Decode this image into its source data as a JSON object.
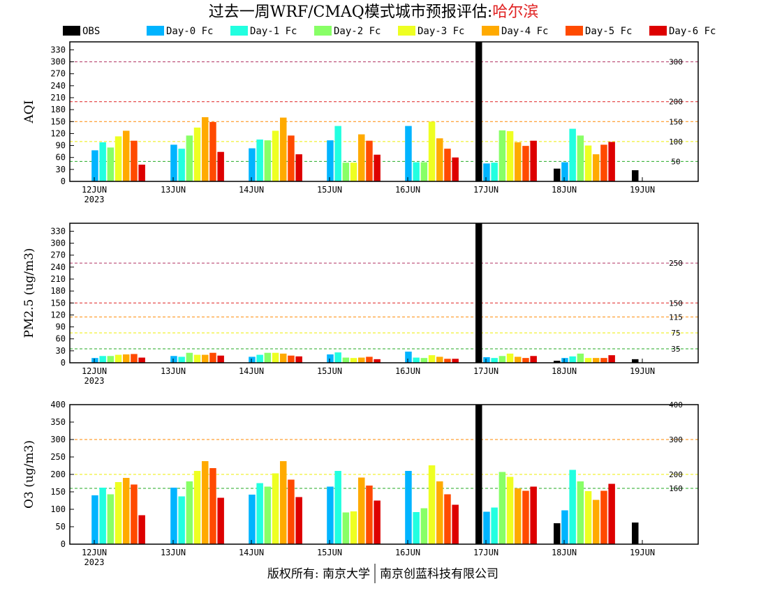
{
  "title": {
    "main": "过去一周WRF/CMAQ模式城市预报评估:",
    "city": "哈尔滨"
  },
  "legend": [
    {
      "name": "OBS",
      "color": "#000000"
    },
    {
      "name": "Day-0 Fc",
      "color": "#00b4ff"
    },
    {
      "name": "Day-1 Fc",
      "color": "#22ffe0"
    },
    {
      "name": "Day-2 Fc",
      "color": "#88ff66"
    },
    {
      "name": "Day-3 Fc",
      "color": "#eeff22"
    },
    {
      "name": "Day-4 Fc",
      "color": "#ffaa00"
    },
    {
      "name": "Day-5 Fc",
      "color": "#ff4a00"
    },
    {
      "name": "Day-6 Fc",
      "color": "#dd0000"
    }
  ],
  "footer": {
    "left": "版权所有: 南京大学",
    "right": "南京创蓝科技有限公司"
  },
  "chart_data": [
    {
      "type": "bar",
      "ylabel": "AQI",
      "ylim": [
        0,
        350
      ],
      "yticks": [
        0,
        30,
        60,
        90,
        120,
        150,
        180,
        210,
        240,
        270,
        300,
        330
      ],
      "categories": [
        "12JUN",
        "13JUN",
        "14JUN",
        "15JUN",
        "16JUN",
        "17JUN",
        "18JUN",
        "19JUN"
      ],
      "year_label": "2023",
      "thresholds": [
        {
          "value": 300,
          "label": "300",
          "color": "#b03060"
        },
        {
          "value": 200,
          "label": "200",
          "color": "#e02020"
        },
        {
          "value": 150,
          "label": "150",
          "color": "#ff8800"
        },
        {
          "value": 100,
          "label": "100",
          "color": "#eeee00"
        },
        {
          "value": 50,
          "label": "50",
          "color": "#22aa22"
        }
      ],
      "series": [
        {
          "name": "OBS",
          "values": [
            null,
            null,
            null,
            null,
            null,
            350,
            32,
            28
          ]
        },
        {
          "name": "Day-0 Fc",
          "values": [
            78,
            92,
            83,
            103,
            139,
            45,
            48,
            null
          ]
        },
        {
          "name": "Day-1 Fc",
          "values": [
            98,
            82,
            105,
            139,
            48,
            47,
            132,
            null
          ]
        },
        {
          "name": "Day-2 Fc",
          "values": [
            85,
            115,
            103,
            47,
            48,
            128,
            115,
            null
          ]
        },
        {
          "name": "Day-3 Fc",
          "values": [
            113,
            135,
            127,
            47,
            150,
            126,
            90,
            null
          ]
        },
        {
          "name": "Day-4 Fc",
          "values": [
            127,
            161,
            160,
            118,
            108,
            98,
            68,
            null
          ]
        },
        {
          "name": "Day-5 Fc",
          "values": [
            102,
            149,
            115,
            102,
            82,
            89,
            92,
            null
          ]
        },
        {
          "name": "Day-6 Fc",
          "values": [
            42,
            74,
            68,
            67,
            60,
            102,
            99,
            null
          ]
        }
      ]
    },
    {
      "type": "bar",
      "ylabel": "PM2.5 (ug/m3)",
      "ylim": [
        0,
        350
      ],
      "yticks": [
        0,
        30,
        60,
        90,
        120,
        150,
        180,
        210,
        240,
        270,
        300,
        330
      ],
      "categories": [
        "12JUN",
        "13JUN",
        "14JUN",
        "15JUN",
        "16JUN",
        "17JUN",
        "18JUN",
        "19JUN"
      ],
      "year_label": "2023",
      "thresholds": [
        {
          "value": 250,
          "label": "250",
          "color": "#b03060"
        },
        {
          "value": 150,
          "label": "150",
          "color": "#e02020"
        },
        {
          "value": 115,
          "label": "115",
          "color": "#ff8800"
        },
        {
          "value": 75,
          "label": "75",
          "color": "#eeee00"
        },
        {
          "value": 35,
          "label": "35",
          "color": "#22aa22"
        }
      ],
      "series": [
        {
          "name": "OBS",
          "values": [
            null,
            null,
            null,
            null,
            null,
            350,
            5,
            9
          ]
        },
        {
          "name": "Day-0 Fc",
          "values": [
            12,
            17,
            15,
            21,
            28,
            14,
            12,
            null
          ]
        },
        {
          "name": "Day-1 Fc",
          "values": [
            17,
            15,
            20,
            26,
            13,
            12,
            16,
            null
          ]
        },
        {
          "name": "Day-2 Fc",
          "values": [
            17,
            25,
            25,
            13,
            12,
            17,
            23,
            null
          ]
        },
        {
          "name": "Day-3 Fc",
          "values": [
            20,
            20,
            25,
            12,
            19,
            23,
            12,
            null
          ]
        },
        {
          "name": "Day-4 Fc",
          "values": [
            21,
            20,
            23,
            13,
            15,
            15,
            12,
            null
          ]
        },
        {
          "name": "Day-5 Fc",
          "values": [
            22,
            25,
            18,
            15,
            10,
            12,
            12,
            null
          ]
        },
        {
          "name": "Day-6 Fc",
          "values": [
            13,
            18,
            16,
            9,
            10,
            17,
            19,
            null
          ]
        }
      ]
    },
    {
      "type": "bar",
      "ylabel": "O3 (ug/m3)",
      "ylim": [
        0,
        400
      ],
      "yticks": [
        0,
        50,
        100,
        150,
        200,
        250,
        300,
        350,
        400
      ],
      "categories": [
        "12JUN",
        "13JUN",
        "14JUN",
        "15JUN",
        "16JUN",
        "17JUN",
        "18JUN",
        "19JUN"
      ],
      "year_label": "2023",
      "thresholds": [
        {
          "value": 400,
          "label": "400",
          "color": "#e02020"
        },
        {
          "value": 300,
          "label": "300",
          "color": "#ff8800"
        },
        {
          "value": 200,
          "label": "200",
          "color": "#eeee00"
        },
        {
          "value": 160,
          "label": "160",
          "color": "#22aa22"
        }
      ],
      "series": [
        {
          "name": "OBS",
          "values": [
            null,
            null,
            null,
            null,
            null,
            400,
            60,
            62
          ]
        },
        {
          "name": "Day-0 Fc",
          "values": [
            140,
            162,
            142,
            165,
            210,
            93,
            97,
            null
          ]
        },
        {
          "name": "Day-1 Fc",
          "values": [
            162,
            137,
            175,
            210,
            92,
            105,
            213,
            null
          ]
        },
        {
          "name": "Day-2 Fc",
          "values": [
            143,
            180,
            165,
            91,
            103,
            207,
            180,
            null
          ]
        },
        {
          "name": "Day-3 Fc",
          "values": [
            178,
            210,
            203,
            94,
            226,
            193,
            152,
            null
          ]
        },
        {
          "name": "Day-4 Fc",
          "values": [
            190,
            238,
            238,
            191,
            180,
            160,
            127,
            null
          ]
        },
        {
          "name": "Day-5 Fc",
          "values": [
            171,
            218,
            185,
            168,
            143,
            153,
            153,
            null
          ]
        },
        {
          "name": "Day-6 Fc",
          "values": [
            83,
            133,
            135,
            125,
            113,
            165,
            173,
            null
          ]
        }
      ]
    }
  ]
}
